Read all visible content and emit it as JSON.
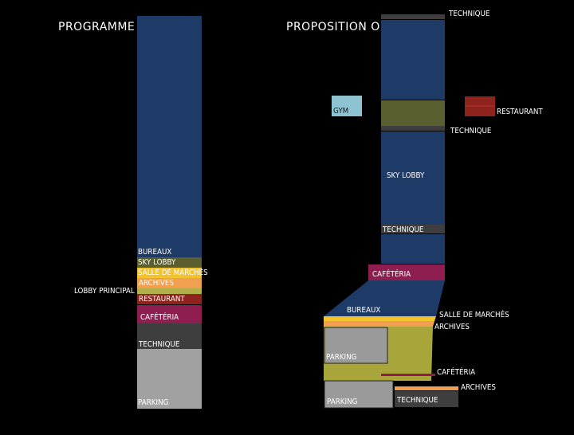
{
  "titles": {
    "programme": "PROGRAMME",
    "oma": "PROPOSITION OMA"
  },
  "colors": {
    "bureaux": "#1e3a66",
    "sky_lobby": "#5b5e2e",
    "salle_de_marches": "#f2c32c",
    "archives": "#f0a050",
    "lobby_principal": "#b3b04a",
    "restaurant": "#8e231d",
    "cafeteria": "#8e1d50",
    "technique": "#3e3e3e",
    "parking": "#a1a1a1",
    "gym": "#8ec3d2",
    "parking_oma": "#9a9a9a",
    "lobby_oma": "#a8a53a"
  },
  "programme": {
    "bureaux": "BUREAUX",
    "sky_lobby": "SKY LOBBY",
    "salle_de_marches": "SALLE DE MARCHÉS",
    "archives": "ARCHIVES",
    "lobby_principal": "LOBBY PRINCIPAL",
    "restaurant": "RESTAURANT",
    "cafeteria": "CAFÉTÉRIA",
    "technique": "TECHNIQUE",
    "parking": "PARKING"
  },
  "oma": {
    "technique_top": "TECHNIQUE",
    "gym": "GYM",
    "restaurant": "RESTAURANT",
    "technique_mid": "TECHNIQUE",
    "sky_lobby": "SKY LOBBY",
    "technique_low": "TECHNIQUE",
    "cafeteria": "CAFÉTÉRIA",
    "bureaux": "BUREAUX",
    "salle_de_marches": "SALLE DE MARCHÉS",
    "archives": "ARCHIVES",
    "parking_upper": "PARKING",
    "cafeteria_base": "CAFÉTÉRIA",
    "archives_base": "ARCHIVES",
    "parking_lower": "PARKING",
    "technique_base": "TECHNIQUE"
  }
}
